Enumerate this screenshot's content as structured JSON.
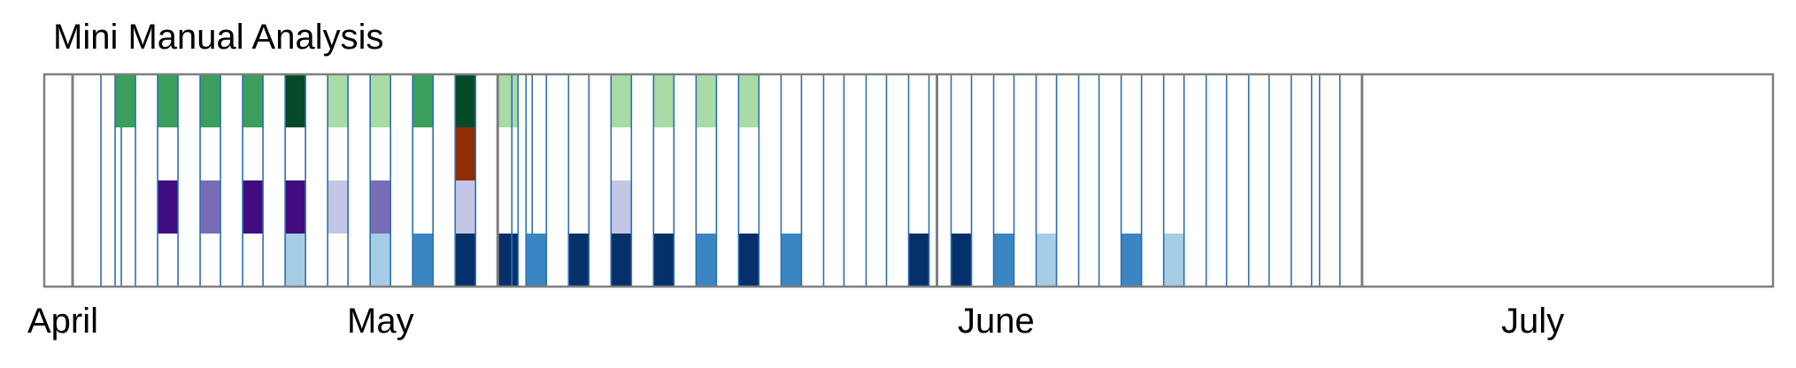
{
  "chart_data": {
    "type": "heatmap",
    "title": "Mini Manual Analysis",
    "xlabel": "",
    "ylabel": "",
    "x_range": [
      "2018-03-30",
      "2018-07-30"
    ],
    "month_labels": [
      {
        "label": "April",
        "date": "2018-04-01"
      },
      {
        "label": "May",
        "date": "2018-05-01"
      },
      {
        "label": "June",
        "date": "2018-06-01"
      },
      {
        "label": "July",
        "date": "2018-07-01"
      }
    ],
    "month_boundaries": [
      "2018-04-01",
      "2018-05-01",
      "2018-06-01",
      "2018-07-01"
    ],
    "rows": 4,
    "colors": {
      "green_light": "#a8dba6",
      "green_mid": "#3a9e5c",
      "green_dark": "#064a2a",
      "brown": "#8c2d04",
      "purple_light": "#c3c6e4",
      "purple_mid": "#796cb5",
      "purple_dark": "#400c80",
      "blue_light": "#a6cde6",
      "blue_mid": "#3a85c2",
      "blue_dark": "#06306a",
      "day_line": "#2c6fb1",
      "frame": "#7f7f7f"
    },
    "days": [
      {
        "date": "2018-04-03",
        "cells": [
          "",
          "",
          "",
          ""
        ]
      },
      {
        "date": "2018-04-04",
        "cells": [
          "green_mid",
          "",
          "",
          ""
        ]
      },
      {
        "date": "2018-04-07",
        "cells": [
          "green_mid",
          "",
          "purple_dark",
          ""
        ]
      },
      {
        "date": "2018-04-10",
        "cells": [
          "green_mid",
          "",
          "purple_mid",
          ""
        ]
      },
      {
        "date": "2018-04-13",
        "cells": [
          "green_mid",
          "",
          "purple_dark",
          ""
        ]
      },
      {
        "date": "2018-04-16",
        "cells": [
          "green_dark",
          "",
          "purple_dark",
          "blue_light"
        ]
      },
      {
        "date": "2018-04-19",
        "cells": [
          "green_light",
          "",
          "purple_light",
          ""
        ]
      },
      {
        "date": "2018-04-22",
        "cells": [
          "green_light",
          "",
          "purple_mid",
          "blue_light"
        ]
      },
      {
        "date": "2018-04-25",
        "cells": [
          "green_mid",
          "",
          "",
          "blue_mid"
        ]
      },
      {
        "date": "2018-04-28",
        "cells": [
          "green_dark",
          "brown",
          "purple_light",
          "blue_dark"
        ]
      },
      {
        "date": "2018-05-01",
        "cells": [
          "green_light",
          "",
          "",
          "blue_dark"
        ]
      },
      {
        "date": "2018-05-02",
        "cells": [
          "",
          "",
          "",
          ""
        ]
      },
      {
        "date": "2018-05-03",
        "cells": [
          "",
          "",
          "",
          "blue_mid"
        ]
      },
      {
        "date": "2018-05-06",
        "cells": [
          "",
          "",
          "",
          "blue_dark"
        ]
      },
      {
        "date": "2018-05-09",
        "cells": [
          "green_light",
          "",
          "purple_light",
          "blue_dark"
        ]
      },
      {
        "date": "2018-05-12",
        "cells": [
          "green_light",
          "",
          "",
          "blue_dark"
        ]
      },
      {
        "date": "2018-05-15",
        "cells": [
          "green_light",
          "",
          "",
          "blue_mid"
        ]
      },
      {
        "date": "2018-05-18",
        "cells": [
          "green_light",
          "",
          "",
          "blue_dark"
        ]
      },
      {
        "date": "2018-05-21",
        "cells": [
          "",
          "",
          "",
          "blue_mid"
        ]
      },
      {
        "date": "2018-05-24",
        "cells": [
          "",
          "",
          "",
          ""
        ]
      },
      {
        "date": "2018-05-27",
        "cells": [
          "",
          "",
          "",
          ""
        ]
      },
      {
        "date": "2018-05-30",
        "cells": [
          "",
          "",
          "",
          "blue_dark"
        ]
      },
      {
        "date": "2018-06-02",
        "cells": [
          "",
          "",
          "",
          "blue_dark"
        ]
      },
      {
        "date": "2018-06-05",
        "cells": [
          "",
          "",
          "",
          "blue_mid"
        ]
      },
      {
        "date": "2018-06-08",
        "cells": [
          "",
          "",
          "",
          "blue_light"
        ]
      },
      {
        "date": "2018-06-11",
        "cells": [
          "",
          "",
          "",
          ""
        ]
      },
      {
        "date": "2018-06-14",
        "cells": [
          "",
          "",
          "",
          "blue_mid"
        ]
      },
      {
        "date": "2018-06-17",
        "cells": [
          "",
          "",
          "",
          "blue_light"
        ]
      },
      {
        "date": "2018-06-20",
        "cells": [
          "",
          "",
          "",
          ""
        ]
      },
      {
        "date": "2018-06-23",
        "cells": [
          "",
          "",
          "",
          ""
        ]
      },
      {
        "date": "2018-06-26",
        "cells": [
          "",
          "",
          "",
          ""
        ]
      },
      {
        "date": "2018-06-28",
        "cells": [
          "",
          "",
          "",
          ""
        ]
      }
    ]
  }
}
